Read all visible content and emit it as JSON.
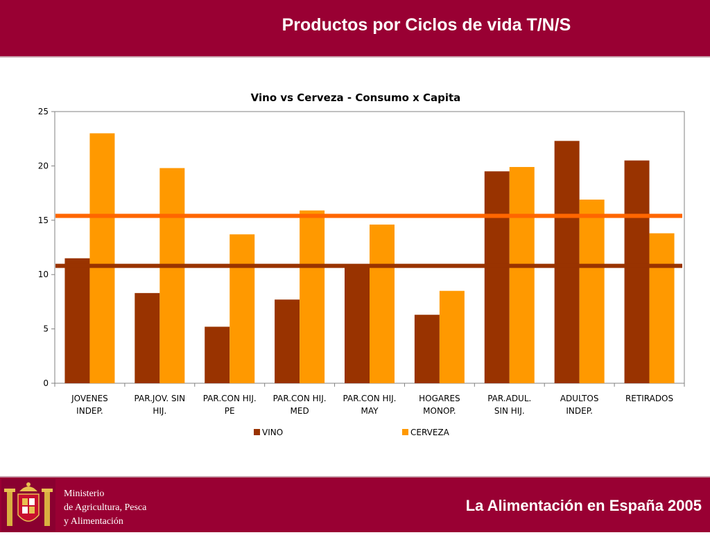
{
  "header": {
    "title": "Productos por Ciclos de vida T/N/S"
  },
  "footer": {
    "ministry_line1": "Ministerio",
    "ministry_line2": "de Agricultura, Pesca",
    "ministry_line3": "y Alimentación",
    "title": "La Alimentación en España 2005"
  },
  "colors": {
    "brand": "#990033",
    "vino": "#993300",
    "cerveza": "#ff9900",
    "avg_cerveza": "#ff6600",
    "avg_vino": "#993300"
  },
  "chart_data": {
    "type": "bar",
    "title": "Vino vs Cerveza - Consumo x Capita",
    "categories": [
      [
        "JOVENES",
        "INDEP."
      ],
      [
        "PAR.JOV. SIN",
        "HIJ."
      ],
      [
        "PAR.CON HIJ.",
        "PE"
      ],
      [
        "PAR.CON HIJ.",
        "MED"
      ],
      [
        "PAR.CON HIJ.",
        "MAY"
      ],
      [
        "HOGARES",
        "MONOP."
      ],
      [
        "PAR.ADUL.",
        "SIN HIJ."
      ],
      [
        "ADULTOS",
        "INDEP."
      ],
      [
        "RETIRADOS"
      ]
    ],
    "series": [
      {
        "name": "VINO",
        "color": "#993300",
        "values": [
          11.5,
          8.3,
          5.2,
          7.7,
          10.7,
          6.3,
          19.5,
          22.3,
          20.5
        ]
      },
      {
        "name": "CERVEZA",
        "color": "#ff9900",
        "values": [
          23.0,
          19.8,
          13.7,
          15.9,
          14.6,
          8.5,
          19.9,
          16.9,
          13.8
        ]
      }
    ],
    "reference_lines": [
      {
        "value": 15.4,
        "color": "#ff6600"
      },
      {
        "value": 10.8,
        "color": "#993300"
      }
    ],
    "ylim": [
      0,
      25
    ],
    "yticks": [
      0,
      5,
      10,
      15,
      20,
      25
    ],
    "grid": false,
    "legend_position": "bottom"
  }
}
